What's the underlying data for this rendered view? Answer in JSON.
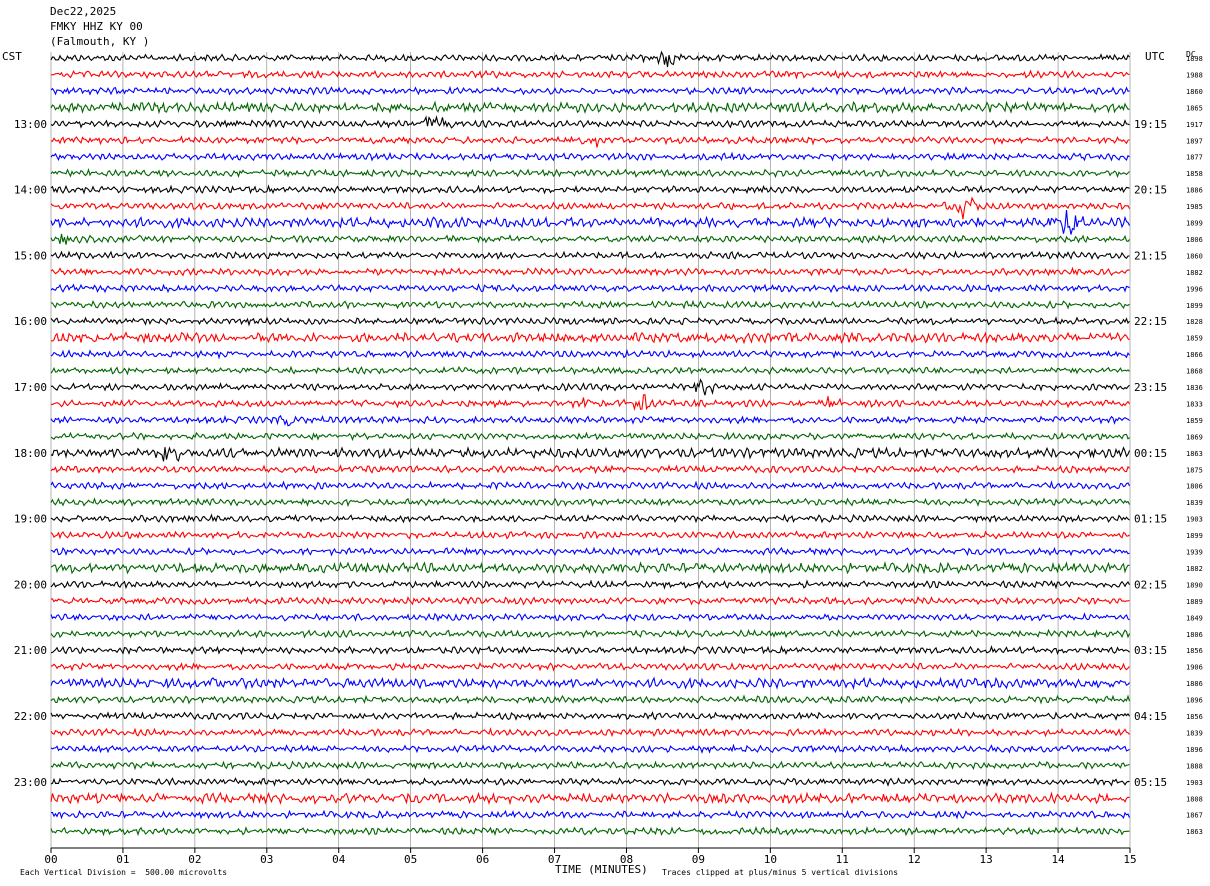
{
  "header": {
    "date": "Dec22,2025",
    "station": "FMKY HHZ KY 00",
    "location": "(Falmouth, KY )"
  },
  "left_label": "CST",
  "right_label": "UTC",
  "dc_label": "DC",
  "footer": {
    "scale_note": "Each Vertical Division =  500.00 microvolts",
    "axis_title": "TIME (MINUTES)",
    "clip_note": "Traces clipped at plus/minus 5 vertical divisions"
  },
  "colors": {
    "black": "#000000",
    "red": "#ff0000",
    "blue": "#0000ff",
    "green": "#006400",
    "grid": "#808080"
  },
  "chart_data": {
    "type": "line",
    "title": "FMKY HHZ KY 00",
    "xlabel": "TIME (MINUTES)",
    "xlim": [
      0,
      15
    ],
    "x_ticks": [
      "00",
      "01",
      "02",
      "03",
      "04",
      "05",
      "06",
      "07",
      "08",
      "09",
      "10",
      "11",
      "12",
      "13",
      "14",
      "15"
    ],
    "trace_color_cycle": [
      "black",
      "red",
      "blue",
      "green"
    ],
    "trace_count": 48,
    "trace_minutes": 15,
    "left_hour_labels": [
      "13:00",
      "14:00",
      "15:00",
      "16:00",
      "17:00",
      "18:00",
      "19:00",
      "20:00",
      "21:00",
      "22:00",
      "23:00"
    ],
    "right_hour_labels": [
      "19:15",
      "20:15",
      "21:15",
      "22:15",
      "23:15",
      "00:15",
      "01:15",
      "02:15",
      "03:15",
      "04:15",
      "05:15"
    ],
    "dc_offsets": [
      "1898",
      "1988",
      "1860",
      "1865",
      "1917",
      "1897",
      "1877",
      "1858",
      "1886",
      "1985",
      "1899",
      "1806",
      "1860",
      "1882",
      "1996",
      "1899",
      "1828",
      "1859",
      "1866",
      "1868",
      "1836",
      "1833",
      "1859",
      "1869",
      "1863",
      "1875",
      "1806",
      "1839",
      "1903",
      "1899",
      "1939",
      "1882",
      "1890",
      "1889",
      "1849",
      "1806",
      "1856",
      "1906",
      "1886",
      "1896",
      "1856",
      "1839",
      "1896",
      "1888",
      "1903",
      "1808",
      "1867",
      "1863"
    ],
    "events": [
      {
        "trace": 0,
        "minute": 8.55,
        "amplitude": 22
      },
      {
        "trace": 4,
        "minute": 5.35,
        "amplitude": 38
      },
      {
        "trace": 5,
        "minute": 7.55,
        "amplitude": 14
      },
      {
        "trace": 9,
        "minute": 12.7,
        "amplitude": 40
      },
      {
        "trace": 10,
        "minute": 14.1,
        "amplitude": 70
      },
      {
        "trace": 10,
        "minute": 5.4,
        "amplitude": 10
      },
      {
        "trace": 10,
        "minute": 7.2,
        "amplitude": 8
      },
      {
        "trace": 11,
        "minute": 0.2,
        "amplitude": 10
      },
      {
        "trace": 20,
        "minute": 9.05,
        "amplitude": 18
      },
      {
        "trace": 21,
        "minute": 7.4,
        "amplitude": 14
      },
      {
        "trace": 21,
        "minute": 8.25,
        "amplitude": 20
      },
      {
        "trace": 21,
        "minute": 10.8,
        "amplitude": 16
      },
      {
        "trace": 22,
        "minute": 3.3,
        "amplitude": 12
      },
      {
        "trace": 24,
        "minute": 1.62,
        "amplitude": 30
      },
      {
        "trace": 38,
        "minute": 2.25,
        "amplitude": 14
      }
    ]
  }
}
